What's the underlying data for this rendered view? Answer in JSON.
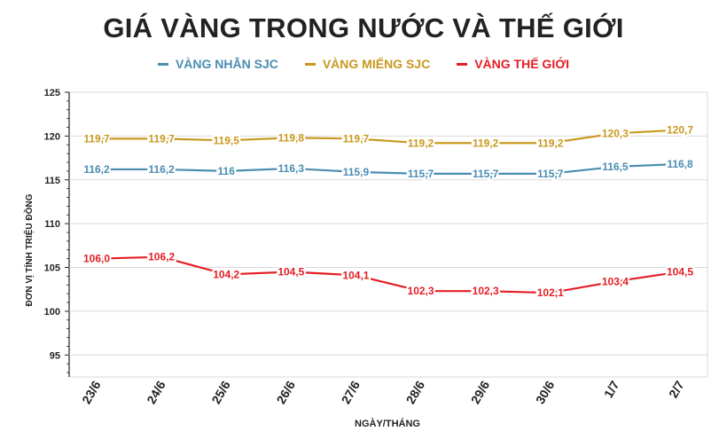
{
  "title": "GIÁ VÀNG TRONG NƯỚC VÀ THẾ GIỚI",
  "chart_data": {
    "type": "line",
    "title": "GIÁ VÀNG TRONG NƯỚC VÀ THẾ GIỚI",
    "xlabel": "NGÀY/THÁNG",
    "ylabel": "ĐƠN VỊ TÍNH TRIỆU ĐỒNG",
    "ylim": [
      92.5,
      125
    ],
    "yticks": [
      95,
      100,
      105,
      110,
      115,
      120,
      125
    ],
    "grid": true,
    "legend_position": "top",
    "categories": [
      "23/6",
      "24/6",
      "25/6",
      "26/6",
      "27/6",
      "28/6",
      "29/6",
      "30/6",
      "1/7",
      "2/7"
    ],
    "series": [
      {
        "name": "VÀNG NHẪN SJC",
        "color": "#4a8db1",
        "values": [
          116.2,
          116.2,
          116,
          116.3,
          115.9,
          115.7,
          115.7,
          115.7,
          116.5,
          116.8
        ],
        "labels": [
          "116,2",
          "116,2",
          "116",
          "116,3",
          "115,9",
          "115,7",
          "115,7",
          "115,7",
          "116,5",
          "116,8"
        ]
      },
      {
        "name": "VÀNG MIẾNG SJC",
        "color": "#c9991f",
        "values": [
          119.7,
          119.7,
          119.5,
          119.8,
          119.7,
          119.2,
          119.2,
          119.2,
          120.3,
          120.7
        ],
        "labels": [
          "119,7",
          "119,7",
          "119,5",
          "119,8",
          "119,7",
          "119,2",
          "119,2",
          "119,2",
          "120,3",
          "120,7"
        ]
      },
      {
        "name": "VÀNG THẾ GIỚI",
        "color": "#e41e24",
        "values": [
          106.0,
          106.2,
          104.2,
          104.5,
          104.1,
          102.3,
          102.3,
          102.1,
          103.4,
          104.5
        ],
        "labels": [
          "106,0",
          "106,2",
          "104,2",
          "104,5",
          "104,1",
          "102,3",
          "102,3",
          "102,1",
          "103,4",
          "104,5"
        ]
      }
    ]
  }
}
